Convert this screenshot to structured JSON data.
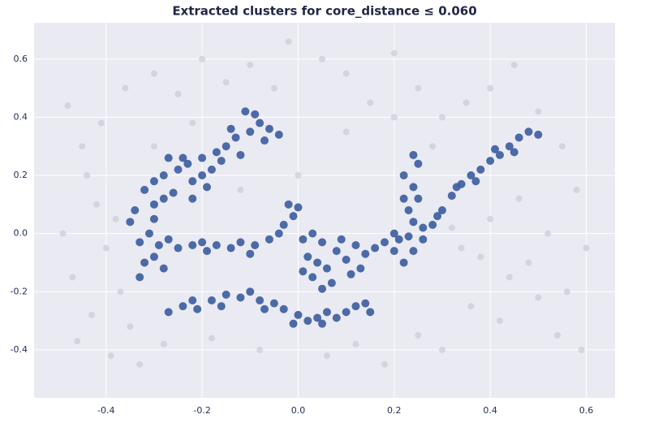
{
  "chart_data": {
    "type": "scatter",
    "title": "Extracted clusters for core_distance ≤ 0.060",
    "xlim": [
      -0.55,
      0.66
    ],
    "ylim": [
      -0.565,
      0.725
    ],
    "xticks": [
      -0.4,
      -0.2,
      {
        "value": 0,
        "label": "0.0"
      },
      0.2,
      0.4,
      0.6
    ],
    "yticks": [
      -0.4,
      -0.2,
      {
        "value": 0,
        "label": "0.0"
      },
      0.2,
      0.4,
      0.6
    ],
    "grid": true,
    "series": [
      {
        "color": "#c9cbd9",
        "x": [
          -0.48,
          -0.45,
          -0.42,
          -0.4,
          -0.37,
          -0.35,
          -0.46,
          -0.43,
          -0.38,
          -0.49,
          -0.44,
          -0.41,
          -0.36,
          -0.47,
          -0.39,
          -0.3,
          -0.25,
          -0.2,
          -0.15,
          -0.1,
          -0.05,
          -0.02,
          0.05,
          0.1,
          0.15,
          0.2,
          0.25,
          0.3,
          0.35,
          0.4,
          0.45,
          0.5,
          0.55,
          0.58,
          0.6,
          0.52,
          0.56,
          0.48,
          0.42,
          0.36,
          0.3,
          0.25,
          0.18,
          0.12,
          0.06,
          -0.08,
          -0.18,
          -0.28,
          -0.33,
          0.32,
          0.38,
          0.44,
          0.5,
          0.54,
          0.59,
          0.28,
          0.2,
          0.1,
          0.0,
          -0.12,
          -0.22,
          -0.3,
          0.46,
          0.4,
          0.34
        ],
        "values": [
          0.44,
          0.3,
          0.1,
          -0.05,
          -0.2,
          -0.32,
          -0.37,
          -0.28,
          0.05,
          0.0,
          0.2,
          0.38,
          0.5,
          -0.15,
          -0.42,
          0.55,
          0.48,
          0.6,
          0.52,
          0.58,
          0.5,
          0.66,
          0.6,
          0.55,
          0.45,
          0.62,
          0.5,
          0.4,
          0.45,
          0.5,
          0.58,
          0.42,
          0.3,
          0.15,
          -0.05,
          0.0,
          -0.2,
          -0.1,
          -0.3,
          -0.25,
          -0.4,
          -0.35,
          -0.45,
          -0.38,
          -0.42,
          -0.4,
          -0.36,
          -0.38,
          -0.45,
          0.02,
          -0.08,
          -0.15,
          -0.22,
          -0.35,
          -0.4,
          0.3,
          0.4,
          0.35,
          0.2,
          0.15,
          0.38,
          0.3,
          0.12,
          0.05,
          -0.05
        ]
      },
      {
        "color": "#3b5c9e",
        "x": [
          -0.32,
          -0.3,
          -0.28,
          -0.26,
          -0.25,
          -0.23,
          -0.22,
          -0.2,
          -0.18,
          -0.17,
          -0.15,
          -0.13,
          -0.12,
          -0.1,
          -0.08,
          -0.06,
          -0.04,
          -0.09,
          -0.11,
          -0.14,
          -0.27,
          -0.24,
          -0.3,
          -0.34,
          -0.28,
          -0.22,
          -0.2,
          -0.16,
          -0.07,
          -0.19,
          -0.33,
          -0.32,
          -0.3,
          -0.29,
          -0.27,
          -0.25,
          -0.22,
          -0.19,
          -0.17,
          -0.14,
          -0.12,
          -0.09,
          -0.06,
          -0.04,
          -0.03,
          -0.01,
          0.0,
          -0.02,
          -0.31,
          -0.33,
          -0.3,
          -0.28,
          -0.2,
          -0.1,
          -0.35,
          -0.27,
          -0.24,
          -0.21,
          -0.18,
          -0.15,
          -0.12,
          -0.1,
          -0.08,
          -0.05,
          -0.03,
          0.0,
          0.02,
          0.04,
          0.06,
          0.08,
          0.1,
          0.12,
          0.14,
          0.15,
          -0.16,
          -0.07,
          0.05,
          -0.01,
          -0.22,
          0.01,
          0.03,
          0.05,
          0.02,
          0.04,
          0.06,
          0.08,
          0.1,
          0.12,
          0.03,
          0.07,
          0.11,
          0.14,
          0.16,
          0.18,
          0.2,
          0.01,
          0.09,
          0.13,
          0.05,
          0.22,
          0.24,
          0.23,
          0.24,
          0.23,
          0.25,
          0.24,
          0.22,
          0.25,
          0.24,
          0.21,
          0.26,
          0.22,
          0.2,
          0.26,
          0.28,
          0.3,
          0.32,
          0.34,
          0.36,
          0.38,
          0.4,
          0.42,
          0.44,
          0.46,
          0.48,
          0.5,
          0.37,
          0.41,
          0.45,
          0.33,
          0.29
        ],
        "values": [
          0.15,
          0.18,
          0.2,
          0.14,
          0.22,
          0.24,
          0.18,
          0.26,
          0.22,
          0.28,
          0.3,
          0.33,
          0.27,
          0.35,
          0.38,
          0.36,
          0.34,
          0.41,
          0.42,
          0.36,
          0.26,
          0.26,
          0.1,
          0.08,
          0.12,
          0.12,
          0.2,
          0.25,
          0.32,
          0.16,
          -0.15,
          -0.1,
          -0.08,
          -0.04,
          -0.02,
          -0.05,
          -0.04,
          -0.06,
          -0.04,
          -0.05,
          -0.03,
          -0.04,
          -0.02,
          0.0,
          0.03,
          0.06,
          0.09,
          0.1,
          0.0,
          -0.03,
          0.05,
          -0.12,
          -0.03,
          -0.07,
          0.04,
          -0.27,
          -0.25,
          -0.26,
          -0.23,
          -0.21,
          -0.22,
          -0.2,
          -0.23,
          -0.24,
          -0.26,
          -0.28,
          -0.3,
          -0.29,
          -0.27,
          -0.29,
          -0.27,
          -0.25,
          -0.24,
          -0.27,
          -0.25,
          -0.26,
          -0.31,
          -0.31,
          -0.23,
          -0.02,
          0.0,
          -0.03,
          -0.08,
          -0.1,
          -0.12,
          -0.06,
          -0.09,
          -0.04,
          -0.15,
          -0.17,
          -0.14,
          -0.07,
          -0.05,
          -0.03,
          -0.06,
          -0.13,
          -0.02,
          -0.12,
          -0.19,
          -0.1,
          -0.06,
          -0.01,
          0.04,
          0.08,
          0.12,
          0.16,
          0.2,
          0.24,
          0.27,
          -0.02,
          0.02,
          0.12,
          0.0,
          -0.02,
          0.03,
          0.08,
          0.13,
          0.17,
          0.2,
          0.22,
          0.25,
          0.27,
          0.3,
          0.33,
          0.35,
          0.34,
          0.18,
          0.29,
          0.28,
          0.16,
          0.06
        ]
      }
    ]
  }
}
